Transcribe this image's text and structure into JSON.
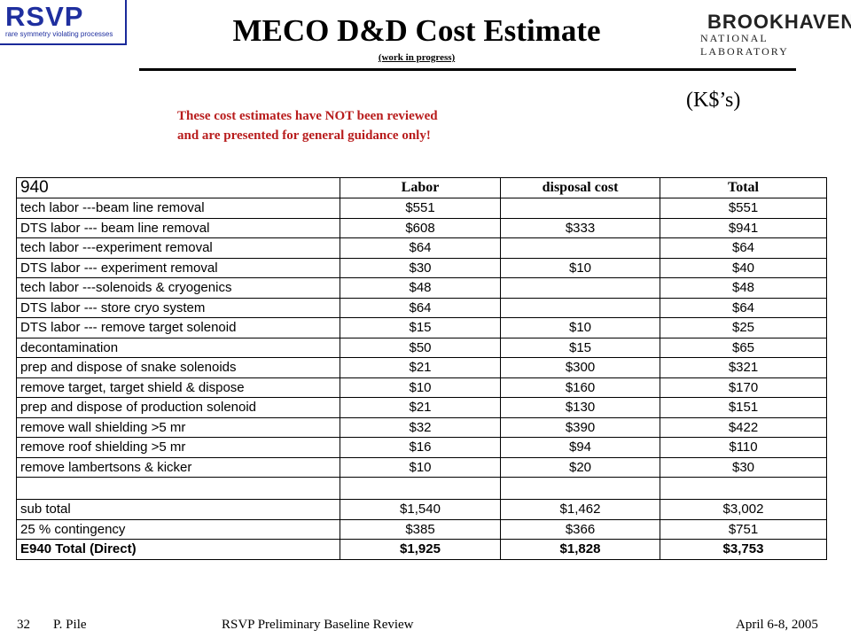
{
  "header": {
    "title": "MECO D&D Cost Estimate",
    "subtitle": "(work in progress)",
    "units": "(K$’s)"
  },
  "logos": {
    "rsvp": {
      "word": "RSVP",
      "tagline": "rare symmetry violating processes",
      "color": "#1f2f9f"
    },
    "bnl": {
      "word": "BROOKHAVEN",
      "sub": "NATIONAL LABORATORY"
    }
  },
  "warning": {
    "line1": "These cost estimates have NOT been reviewed",
    "line2": "and are presented for general guidance only!",
    "color": "#b81c1c"
  },
  "table": {
    "headers": {
      "code": "940",
      "labor": "Labor",
      "disposal": "disposal cost",
      "total": "Total"
    },
    "rows": [
      {
        "item": "tech labor ---beam line removal",
        "labor": "$551",
        "disposal": "",
        "total": "$551"
      },
      {
        "item": "DTS labor --- beam line removal",
        "labor": "$608",
        "disposal": "$333",
        "total": "$941"
      },
      {
        "item": "tech labor  ---experiment removal",
        "labor": "$64",
        "disposal": "",
        "total": "$64"
      },
      {
        "item": "DTS labor --- experiment removal",
        "labor": "$30",
        "disposal": "$10",
        "total": "$40"
      },
      {
        "item": "tech labor  ---solenoids & cryogenics",
        "labor": "$48",
        "disposal": "",
        "total": "$48"
      },
      {
        "item": "DTS labor --- store cryo system",
        "labor": "$64",
        "disposal": "",
        "total": "$64"
      },
      {
        "item": "DTS labor --- remove target solenoid",
        "labor": "$15",
        "disposal": "$10",
        "total": "$25"
      },
      {
        "item": "decontamination",
        "labor": "$50",
        "disposal": "$15",
        "total": "$65"
      },
      {
        "item": "prep and dispose of snake solenoids",
        "labor": "$21",
        "disposal": "$300",
        "total": "$321"
      },
      {
        "item": "remove target, target shield & dispose",
        "labor": "$10",
        "disposal": "$160",
        "total": "$170"
      },
      {
        "item": "prep and dispose of production solenoid",
        "labor": "$21",
        "disposal": "$130",
        "total": "$151"
      },
      {
        "item": "remove wall shielding >5 mr",
        "labor": "$32",
        "disposal": "$390",
        "total": "$422"
      },
      {
        "item": "remove roof shielding >5 mr",
        "labor": "$16",
        "disposal": "$94",
        "total": "$110"
      },
      {
        "item": "remove lambertsons & kicker",
        "labor": "$10",
        "disposal": "$20",
        "total": "$30"
      }
    ],
    "subtotal": {
      "item": "sub total",
      "labor": "$1,540",
      "disposal": "$1,462",
      "total": "$3,002"
    },
    "contingency": {
      "item": "25 % contingency",
      "labor": "$385",
      "disposal": "$366",
      "total": "$751"
    },
    "grand_total": {
      "item": "E940 Total (Direct)",
      "labor": "$1,925",
      "disposal": "$1,828",
      "total": "$3,753"
    }
  },
  "footer": {
    "page": "32",
    "author": "P. Pile",
    "event": "RSVP Preliminary Baseline Review",
    "date": "April 6-8, 2005"
  }
}
